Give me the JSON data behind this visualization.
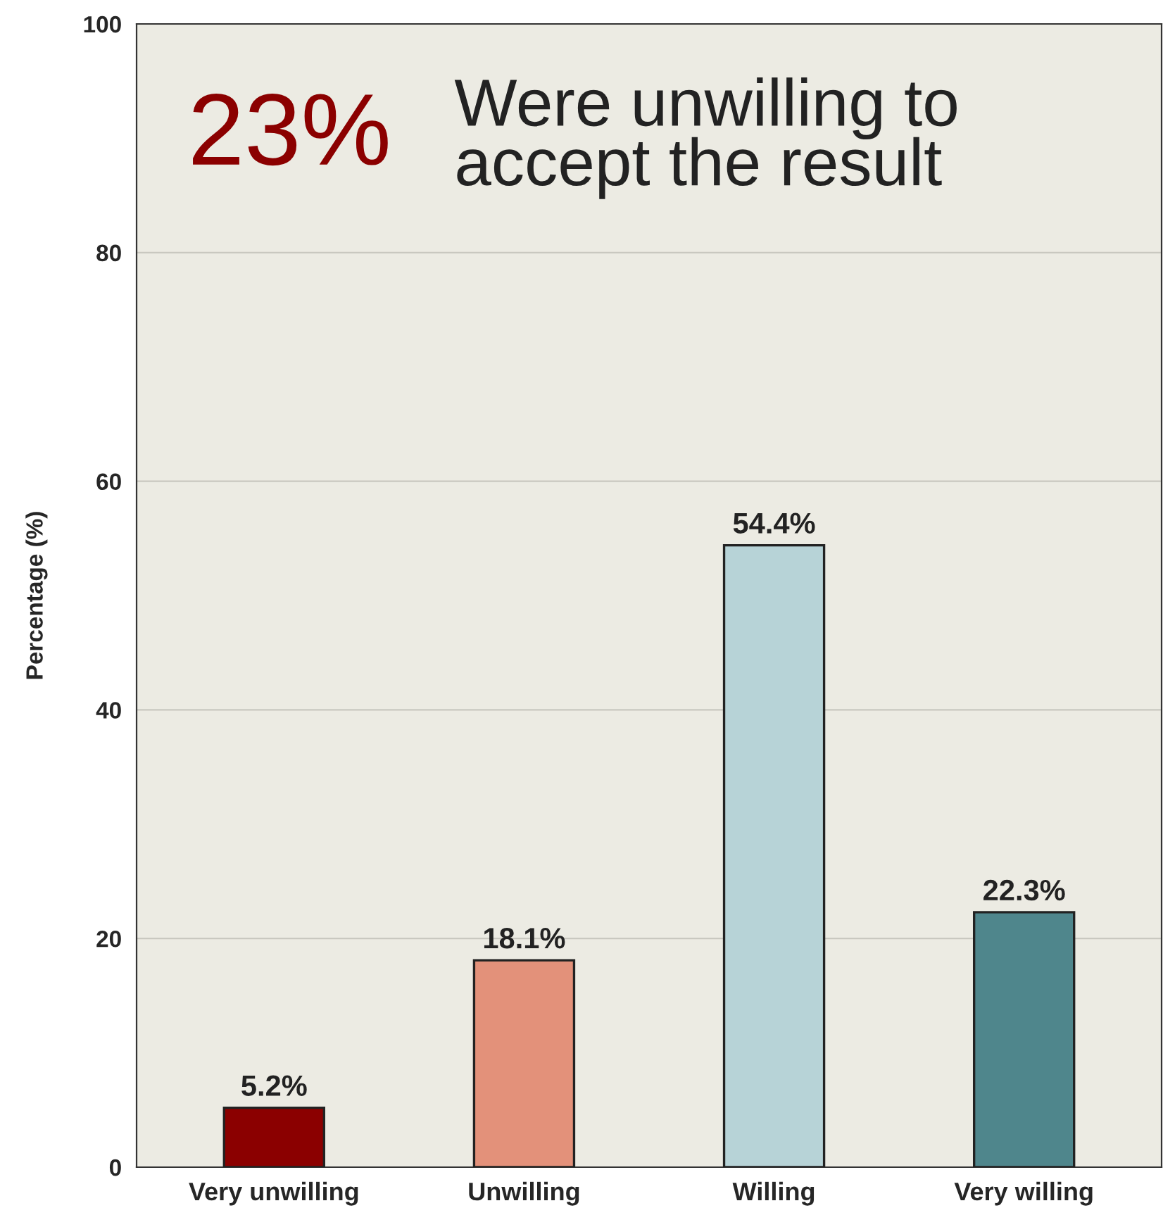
{
  "chart_data": {
    "type": "bar",
    "ylabel": "Percentage (%)",
    "categories": [
      "Very unwilling",
      "Unwilling",
      "Willing",
      "Very willing"
    ],
    "values": [
      5.2,
      18.1,
      54.4,
      22.3
    ],
    "colors": [
      "#8b0000",
      "#e3917a",
      "#b7d3d7",
      "#4f868c"
    ],
    "value_labels": [
      "5.2%",
      "18.1%",
      "54.4%",
      "22.3%"
    ],
    "ylim": [
      0,
      100
    ],
    "yticks": [
      0,
      20,
      40,
      60,
      80,
      100
    ],
    "grid": "y",
    "annotations": [
      "23%",
      "Were unwilling to\naccept the result"
    ]
  }
}
